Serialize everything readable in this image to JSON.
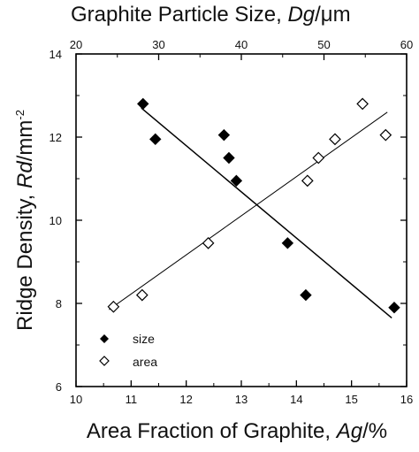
{
  "chart_data": {
    "type": "scatter",
    "bottom_axis": {
      "label_parts": [
        "Area Fraction of Graphite, ",
        "Ag",
        "/%"
      ],
      "range": [
        10,
        16
      ],
      "ticks": [
        "10",
        "11",
        "12",
        "13",
        "14",
        "15",
        "16"
      ]
    },
    "top_axis": {
      "label_parts": [
        "Graphite Particle Size, ",
        "Dg",
        "/μm"
      ],
      "range": [
        20,
        60
      ],
      "ticks": [
        "20",
        "30",
        "40",
        "50",
        "60"
      ]
    },
    "left_axis": {
      "label_parts": [
        "Ridge Density, ",
        "Rd",
        "/mm",
        "-2"
      ],
      "range": [
        6,
        14
      ],
      "ticks": [
        "6",
        "8",
        "10",
        "12",
        "14"
      ]
    },
    "series": [
      {
        "name": "size",
        "axis": "top",
        "marker": "filled-diamond",
        "x": [
          28.1,
          29.6,
          37.9,
          38.5,
          39.4,
          45.6,
          47.8,
          58.5
        ],
        "y": [
          12.8,
          11.95,
          12.05,
          11.5,
          10.95,
          9.45,
          8.2,
          7.9
        ],
        "fit": {
          "x": [
            27.9,
            58.2
          ],
          "y": [
            12.7,
            7.65
          ]
        }
      },
      {
        "name": "area",
        "axis": "bottom",
        "marker": "open-diamond",
        "x": [
          10.68,
          11.2,
          12.4,
          14.2,
          14.4,
          14.7,
          15.2,
          15.62
        ],
        "y": [
          7.92,
          8.2,
          9.45,
          10.95,
          11.5,
          11.95,
          12.8,
          12.05
        ],
        "fit": {
          "x": [
            10.6,
            15.65
          ],
          "y": [
            7.85,
            12.6
          ]
        }
      }
    ],
    "legend_position": "lower-left",
    "grid": false
  }
}
